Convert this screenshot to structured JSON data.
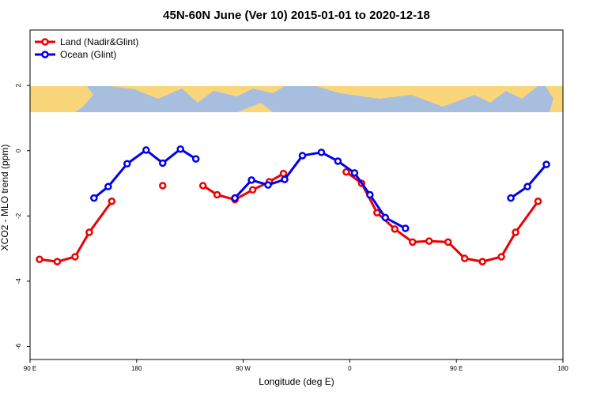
{
  "chart_data": {
    "type": "line",
    "title": "45N-60N June (Ver 10)   2015-01-01 to 2020-12-18",
    "x_label": "Longitude (deg E)",
    "y_label": "XCO2 - MLO trend (ppm)",
    "xlim": [
      90,
      540
    ],
    "xticks": [
      {
        "value": 90,
        "label": "90 E"
      },
      {
        "value": 180,
        "label": "180"
      },
      {
        "value": 270,
        "label": "90 W"
      },
      {
        "value": 360,
        "label": "0"
      },
      {
        "value": 450,
        "label": "90 E"
      },
      {
        "value": 540,
        "label": "180"
      }
    ],
    "ylim": [
      -6.4,
      3.7
    ],
    "yticks": [
      -6,
      -4,
      -2,
      0,
      2
    ],
    "legend": "top-left",
    "series": [
      {
        "name": "Land (Nadir&Glint)",
        "color": "#ee0000",
        "x": [
          98,
          113,
          128,
          140,
          159,
          180,
          202,
          220,
          236,
          248,
          263,
          278,
          292,
          304,
          330,
          357,
          370,
          383,
          398,
          413,
          427,
          443,
          457,
          472,
          488,
          500,
          519
        ],
        "values": [
          -3.33,
          -3.4,
          -3.25,
          -2.5,
          -1.55,
          null,
          -1.07,
          null,
          -1.07,
          -1.35,
          -1.5,
          -1.2,
          -0.95,
          -0.7,
          null,
          -0.65,
          -1.0,
          -1.9,
          -2.4,
          -2.8,
          -2.77,
          -2.8,
          -3.3,
          -3.4,
          -3.25,
          -2.5,
          -1.55
        ]
      },
      {
        "name": "Ocean (Glint)",
        "color": "#0000ee",
        "x": [
          144,
          156,
          172,
          188,
          202,
          217,
          230,
          245,
          263,
          277,
          291,
          305,
          320,
          336,
          350,
          364,
          377,
          390,
          407,
          450,
          496,
          510,
          526
        ],
        "values": [
          -1.45,
          -1.1,
          -0.4,
          0.02,
          -0.38,
          0.05,
          -0.25,
          null,
          -1.45,
          -0.9,
          -1.05,
          -0.88,
          -0.15,
          -0.05,
          -0.32,
          -0.68,
          -1.35,
          -2.05,
          -2.38,
          null,
          -1.45,
          -1.1,
          -0.42
        ]
      }
    ]
  }
}
